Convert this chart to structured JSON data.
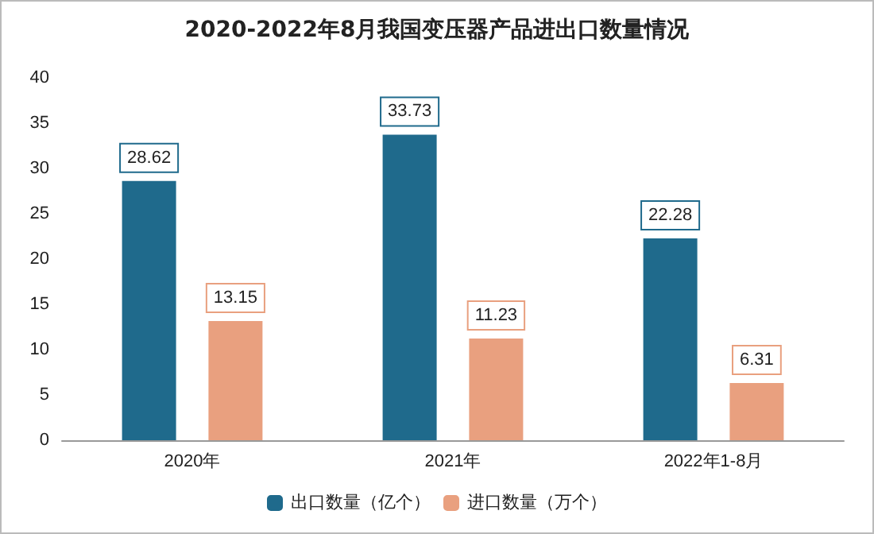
{
  "chart_data": {
    "type": "bar",
    "title": "2020-2022年8月我国变压器产品进出口数量情况",
    "categories": [
      "2020年",
      "2021年",
      "2022年1-8月"
    ],
    "series": [
      {
        "name": "出口数量（亿个）",
        "color": "#1f6a8c",
        "values": [
          28.62,
          33.73,
          22.28
        ]
      },
      {
        "name": "进口数量（万个）",
        "color": "#e9a07f",
        "values": [
          13.15,
          11.23,
          6.31
        ]
      }
    ],
    "ylim": [
      0,
      40
    ],
    "yticks": [
      0,
      5,
      10,
      15,
      20,
      25,
      30,
      35,
      40
    ],
    "grid": false,
    "legend": "bottom",
    "data_labels": true
  }
}
